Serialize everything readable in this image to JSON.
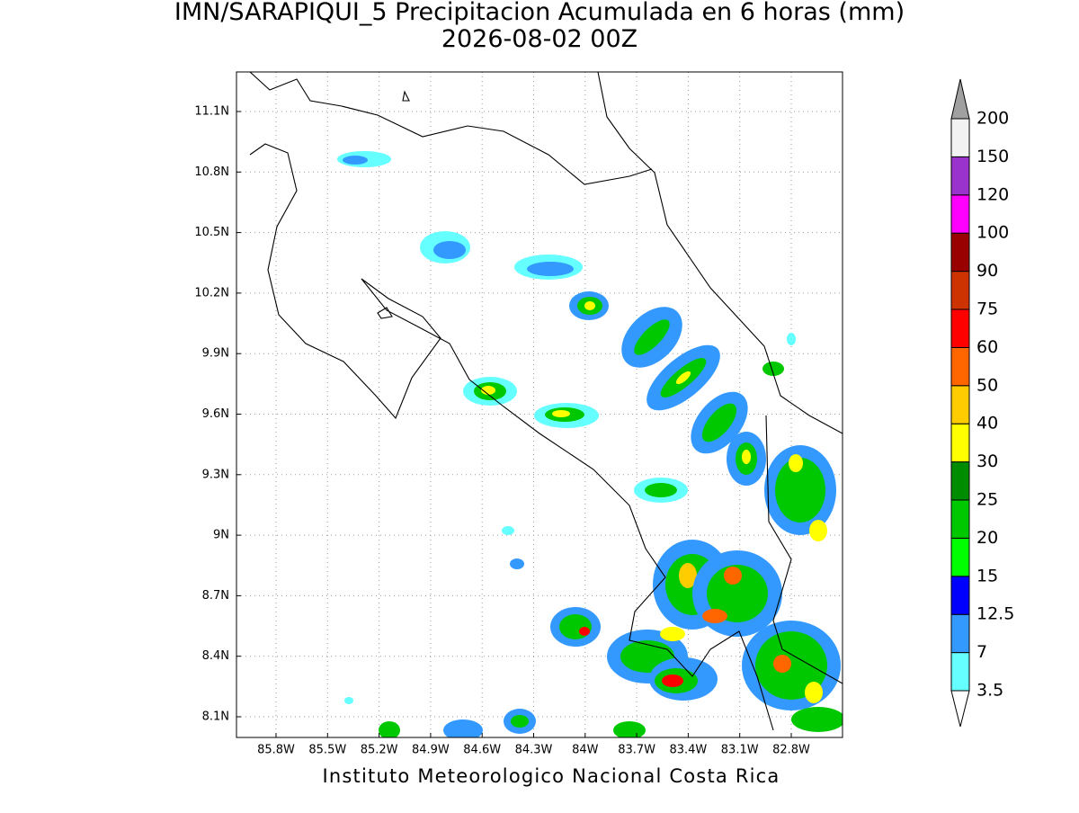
{
  "header": {
    "title": "IMN/SARAPIQUI_5 Precipitacion Acumulada en 6 horas (mm)",
    "subtitle": "2026-08-02 00Z"
  },
  "map": {
    "lon_labels": [
      "85.8W",
      "85.5W",
      "85.2W",
      "84.9W",
      "84.6W",
      "84.3W",
      "84W",
      "83.7W",
      "83.4W",
      "83.1W",
      "82.8W"
    ],
    "lat_labels": [
      "11.1N",
      "10.8N",
      "10.5N",
      "10.2N",
      "9.9N",
      "9.6N",
      "9.3N",
      "9N",
      "8.7N",
      "8.4N",
      "8.1N"
    ]
  },
  "colorbar": {
    "levels": [
      3.5,
      7,
      12.5,
      15,
      20,
      25,
      30,
      40,
      50,
      60,
      75,
      90,
      100,
      120,
      150,
      200
    ],
    "colors": [
      "#66ffff",
      "#3399ff",
      "#0000ff",
      "#00ff00",
      "#00c800",
      "#008c00",
      "#ffff00",
      "#ffcc00",
      "#ff6600",
      "#ff0000",
      "#cc3300",
      "#990000",
      "#ff00ff",
      "#9933cc",
      "#f2f2f2"
    ],
    "below_color": "#ffffff",
    "above_color": "#a0a0a0"
  },
  "footer": "Instituto Meteorologico Nacional Costa Rica"
}
